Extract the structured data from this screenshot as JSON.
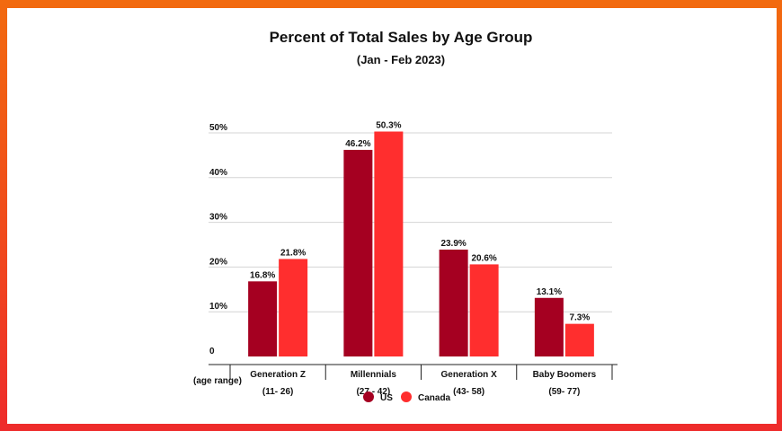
{
  "colors": {
    "us": "#a50021",
    "canada": "#ff2e2e",
    "grid": "#d4d4d4",
    "axis": "#222222"
  },
  "chart_data": {
    "type": "bar",
    "title": "Percent of Total Sales by Age Group",
    "subtitle": "(Jan - Feb 2023)",
    "categories": [
      "Generation Z",
      "Millennials",
      "Generation X",
      "Baby Boomers"
    ],
    "age_ranges": [
      "(11- 26)",
      "(27 - 42)",
      "(43- 58)",
      "(59- 77)"
    ],
    "age_range_label": "(age range)",
    "series": [
      {
        "name": "US",
        "values": [
          16.8,
          46.2,
          23.9,
          13.1
        ],
        "labels": [
          "16.8%",
          "46.2%",
          "23.9%",
          "13.1%"
        ]
      },
      {
        "name": "Canada",
        "values": [
          21.8,
          50.3,
          20.6,
          7.3
        ],
        "labels": [
          "21.8%",
          "50.3%",
          "20.6%",
          "7.3%"
        ]
      }
    ],
    "y_ticks": [
      0,
      10,
      20,
      30,
      40,
      50
    ],
    "y_tick_labels": [
      "0",
      "10%",
      "20%",
      "30%",
      "40%",
      "50%"
    ],
    "ylim": [
      0,
      50
    ],
    "grid": true,
    "legend": "bottom-center"
  }
}
